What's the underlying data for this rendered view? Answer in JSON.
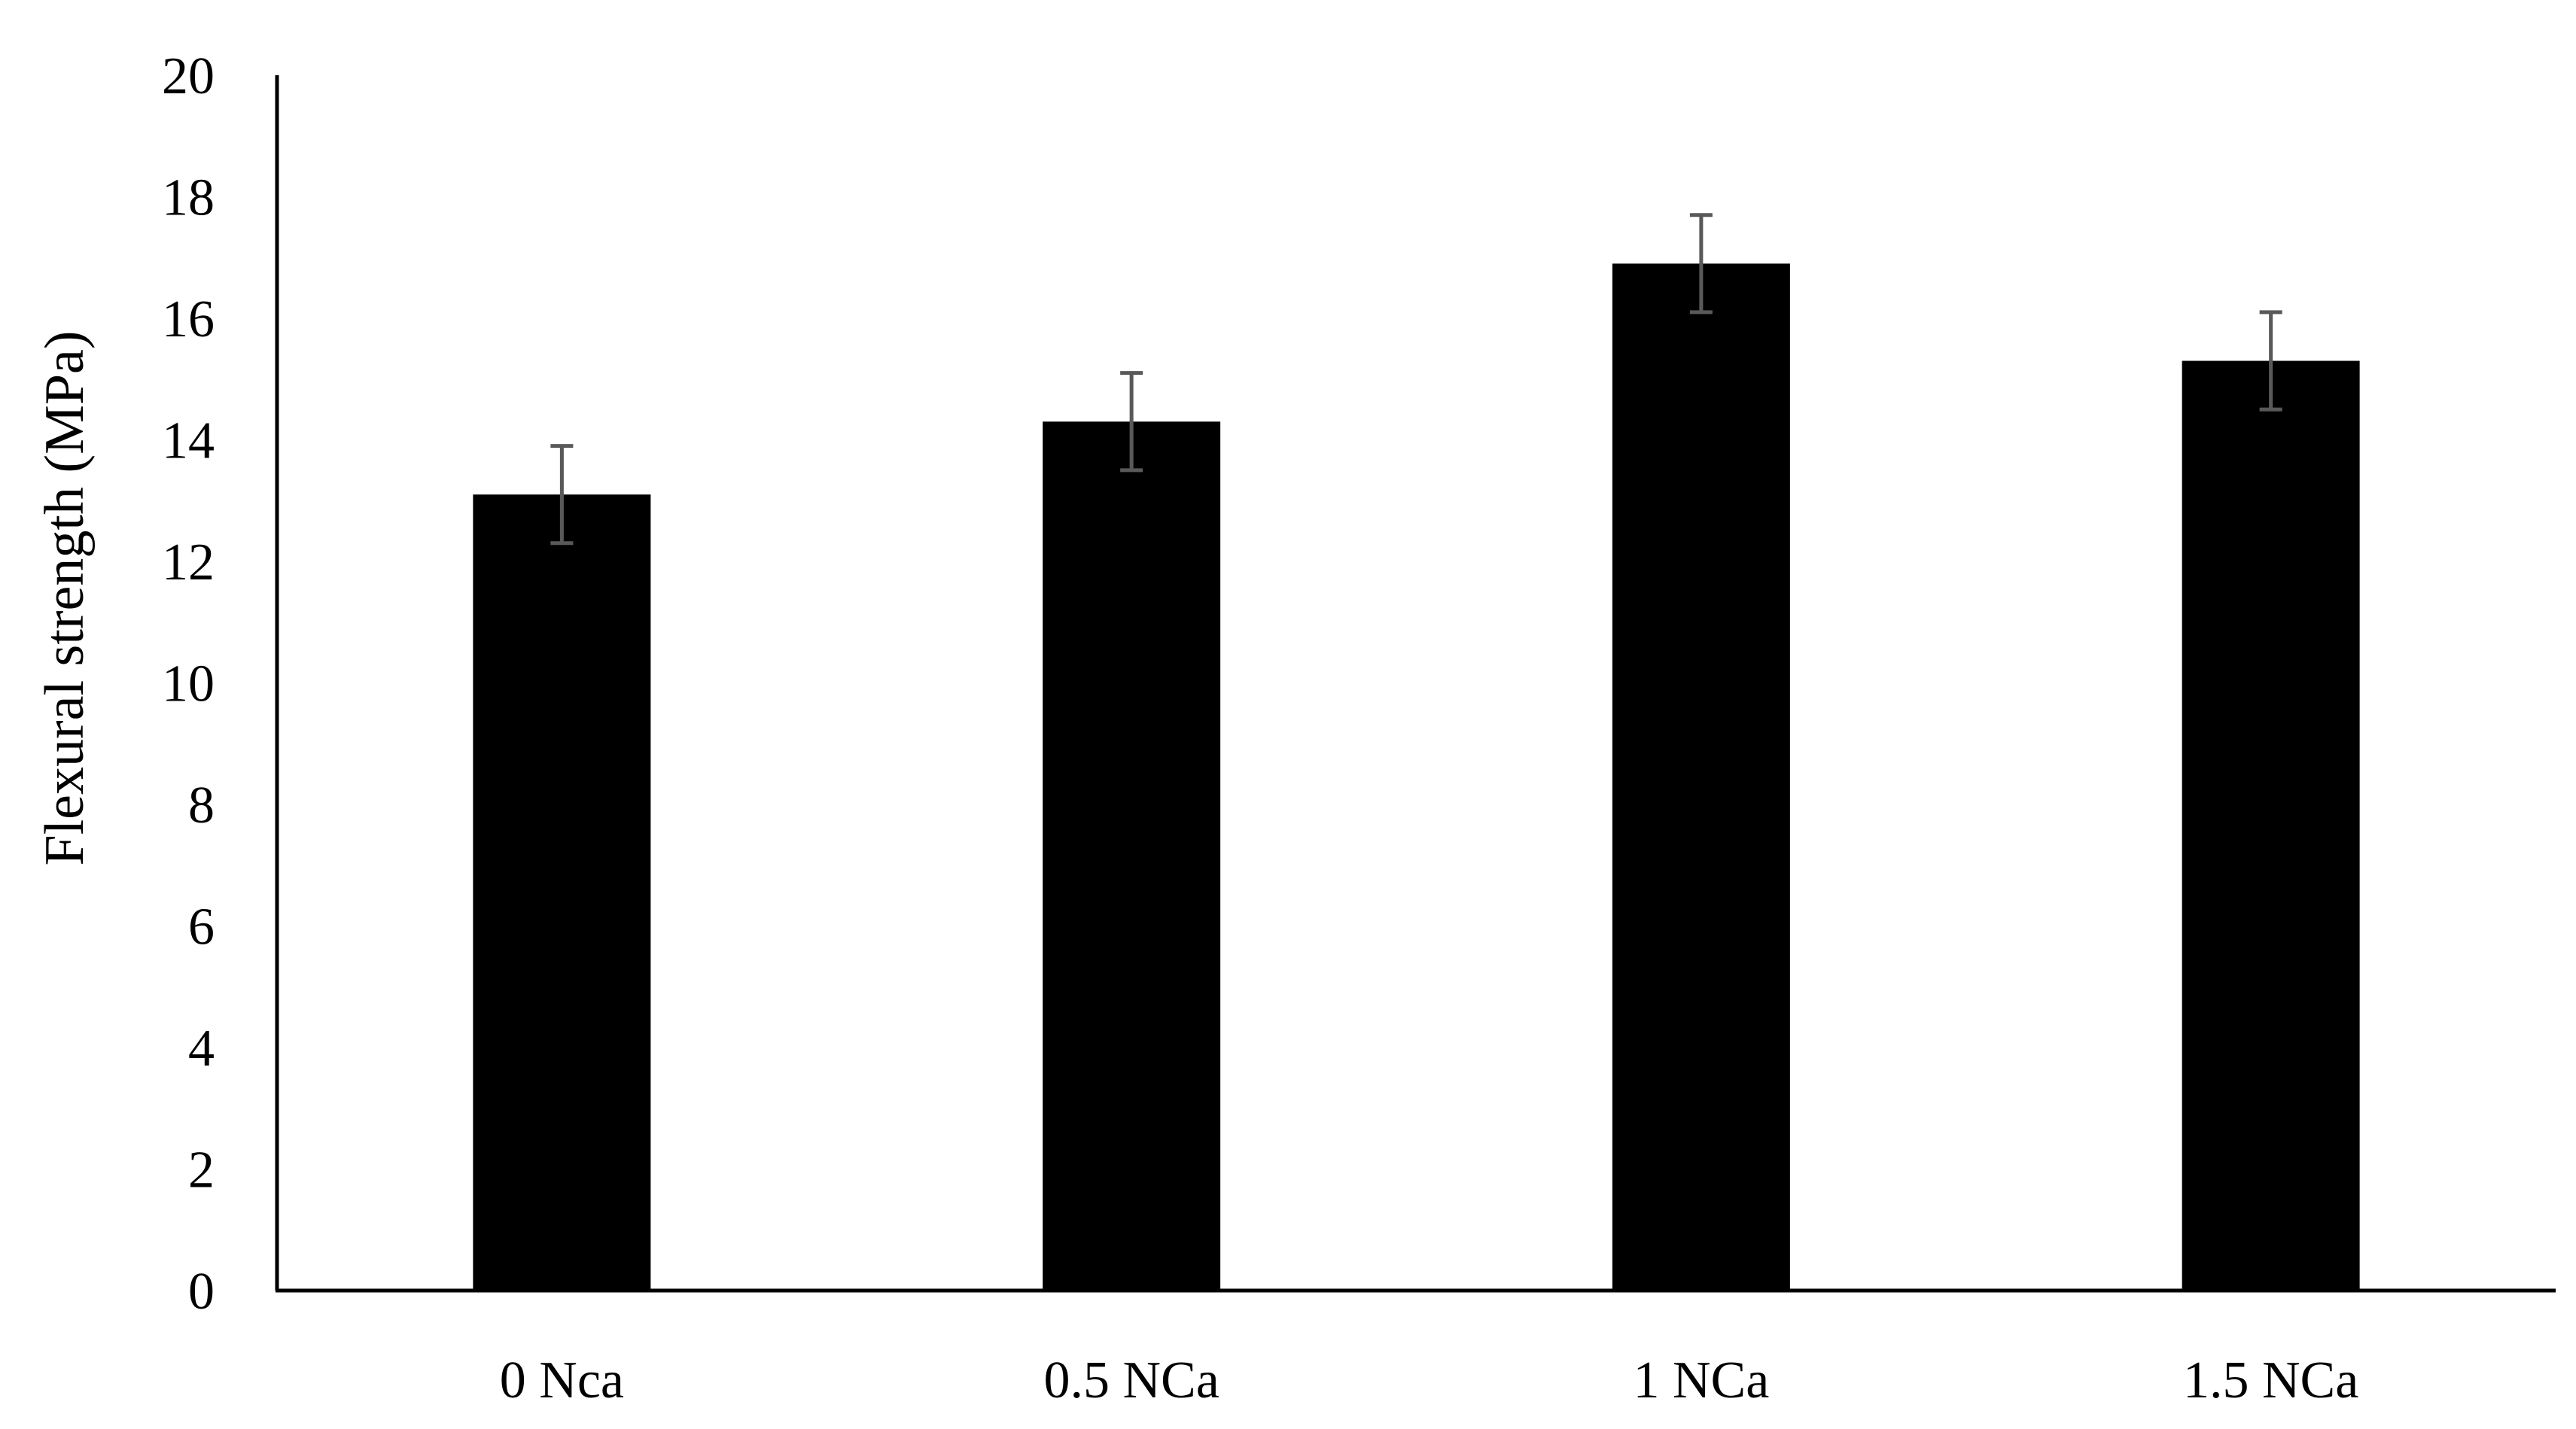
{
  "chart_data": {
    "type": "bar",
    "title": "",
    "xlabel": "",
    "ylabel": "Flexural strength  (MPa)",
    "categories": [
      "0 Nca",
      "0.5 NCa",
      "1 NCa",
      "1.5 NCa"
    ],
    "values": [
      13.1,
      14.3,
      16.9,
      15.3
    ],
    "errors": [
      0.8,
      0.8,
      0.8,
      0.8
    ],
    "ylim": [
      0,
      20
    ],
    "yticks": [
      0,
      2,
      4,
      6,
      8,
      10,
      12,
      14,
      16,
      18,
      20
    ],
    "grid": false,
    "legend": "none",
    "colors": {
      "bar": "#000000",
      "error_bar": "#595959",
      "axis": "#000000",
      "text": "#000000"
    }
  }
}
